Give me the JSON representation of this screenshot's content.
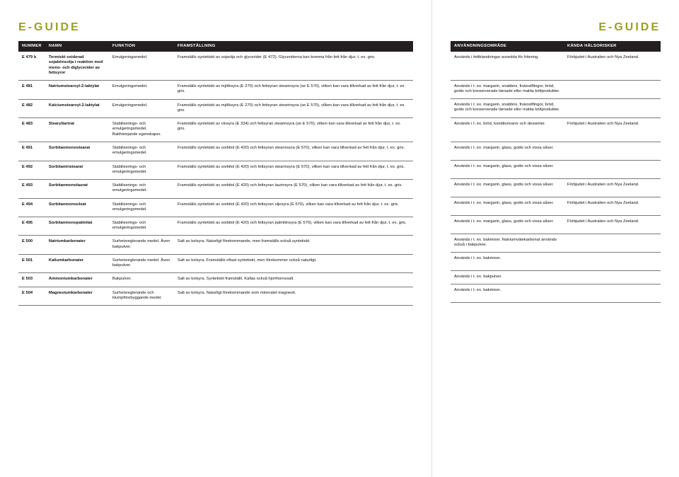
{
  "brand": "E-GUIDE",
  "left_headers": [
    "NUMMER",
    "NAMN",
    "FUNKTION",
    "FRAMSTÄLLNING"
  ],
  "right_headers": [
    "ANVÄNDNINGSOMRÅDE",
    "KÄNDA HÄLSORISKER"
  ],
  "rows": [
    {
      "num": "E 479 b",
      "name": "Termiskt oxiderad sojabönsolja i reaktion med mono- och diglycerider av fettsyror",
      "func": "Emulgeringsmedel.",
      "prod": "Framställs syntetiskt av sojaolja och glycerider (E 472). Glyceriderna kan komma från fett från djur, t. ex. gris.",
      "use": "Används i fettblandningar avsedda för fritering.",
      "risk": "Förbjudet i Australien och Nya Zeeland."
    },
    {
      "num": "E 481",
      "name": "Natriumstearoyl-2-laktylat",
      "func": "Emulgeringsmedel.",
      "prod": "Framställs syntetiskt av mjölksyra (E 270) och fettsyran stearinsyra (se E 570), vilken kan vara tillverkad av fett från djur, t. ex. gris.",
      "use": "Används i t. ex. margarin, snabbris, frukostflingor, bröd, godis och konserverade tärnade eller malda köttprodukter.",
      "risk": ""
    },
    {
      "num": "E 482",
      "name": "Kalciumstearoyl-2-laktylat",
      "func": "Emulgeringsmedel.",
      "prod": "Framställs syntetiskt av mjölksyra (E 270) och fettsyran stearinsyra (se E 570), vilken kan vara tillverkad av fett från djur, t. ex. gris.",
      "use": "Används i t. ex. margarin, snabbris, frukostflingor, bröd, godis och konserverade tärnade eller malda köttprodukter.",
      "risk": ""
    },
    {
      "num": "E 483",
      "name": "Stearyltartrat",
      "func": "Stabiliserings- och emulgeringsmedel. Bakfrämjande egenskaper.",
      "prod": "Framställs syntetiskt av vinsyra (E 334) och fettsyran stearinsyra (se E 570), vilken kan vara tillverkad av fett från djur, t. ex. gris.",
      "use": "Används i t. ex. bröd, konditorivaror och desserter.",
      "risk": "Förbjudet i Australien och Nya Zeeland."
    },
    {
      "num": "E 491",
      "name": "Sorbitanmonostearat",
      "func": "Stabiliserings- och emulgeringsmedel.",
      "prod": "Framställs syntetiskt av sorbitol (E 420) och fettsyran stearinsyra (E 570), vilken kan vara tillverkad av fett från djur, t. ex. gris.",
      "use": "Används i t. ex. margarin, glass, godis och vissa såser.",
      "risk": ""
    },
    {
      "num": "E 492",
      "name": "Sorbitantristearat",
      "func": "Stabiliserings- och emulgeringsmedel.",
      "prod": "Framställs syntetiskt av sorbitol (E 420) och fettsyran stearinsyra (E 570), vilken kan vara tillverkad av fett från djur, t. ex. gris.",
      "use": "Används i t. ex. margarin, glass, godis och vissa såser.",
      "risk": ""
    },
    {
      "num": "E 493",
      "name": "Sorbitanmonolaurat",
      "func": "Stabiliserings- och emulgeringsmedel.",
      "prod": "Framställs syntetiskt av sorbitol (E 420) och fettsyran laurinsyra (E 570), vilken kan vara tillverkad av fett från djur, t. ex. gris.",
      "use": "Används i t. ex. margarin, glass, godis och vissa såser.",
      "risk": "Förbjudet i Australien och Nya Zeeland."
    },
    {
      "num": "E 494",
      "name": "Sorbitanmonooleat",
      "func": "Stabiliserings- och emulgeringsmedel.",
      "prod": "Framställs syntetiskt av sorbitol (E 420) och fettsyran oljesyra (E 570), vilken kan vara tillverkad av fett från djur, t. ex. gris.",
      "use": "Används i t. ex. margarin, glass, godis och vissa såser.",
      "risk": "Förbjudet i Australien och Nya Zeeland."
    },
    {
      "num": "E 495",
      "name": "Sorbitanmonopalmitat",
      "func": "Stabiliserings- och emulgeringsmedel.",
      "prod": "Framställs syntetiskt av sorbitol (E 420) och fettsyran palmitinsyra (E 570), vilken kan vara tillverkad av fett från djur, t. ex. gris.",
      "use": "Används i t. ex. margarin, glass, godis och vissa såser.",
      "risk": "Förbjudet i Australien och Nya Zeeland."
    },
    {
      "num": "E 500",
      "name": "Natriumkarbonater",
      "func": "Surhetsreglerande medel. Även bakpulver.",
      "prod": "Salt av kolsyra. Naturligt förekommande, men framställs också syntetiskt.",
      "use": "Används i t. ex. bakmixer. Natriumvätekarbonat används också i bakpulver.",
      "risk": ""
    },
    {
      "num": "E 501",
      "name": "Kaliumkarbonater",
      "func": "Surhetsreglerande medel. Även bakpulver.",
      "prod": "Salt av kolsyra. Framställs oftast syntetiskt, men förekommer också naturligt.",
      "use": "Används i t. ex. bakmixer.",
      "risk": ""
    },
    {
      "num": "E 503",
      "name": "Ammoniumkarbonater",
      "func": "Bakpulver.",
      "prod": "Salt av kolsyra. Syntetiskt framställt. Kallas också hjorthornssalt.",
      "use": "Används i t. ex. bakpulver.",
      "risk": ""
    },
    {
      "num": "E 504",
      "name": "Magnesiumkarbonater",
      "func": "Surhetsreglerande och klumpförebyggande medel.",
      "prod": "Salt av kolsyra. Naturligt förekommande som mineralet magnesit.",
      "use": "Används i t. ex. bakmixer.",
      "risk": ""
    }
  ],
  "colors": {
    "header_bg": "#231f20",
    "accent": "#9ca11e",
    "rule": "#7a7a7a"
  }
}
